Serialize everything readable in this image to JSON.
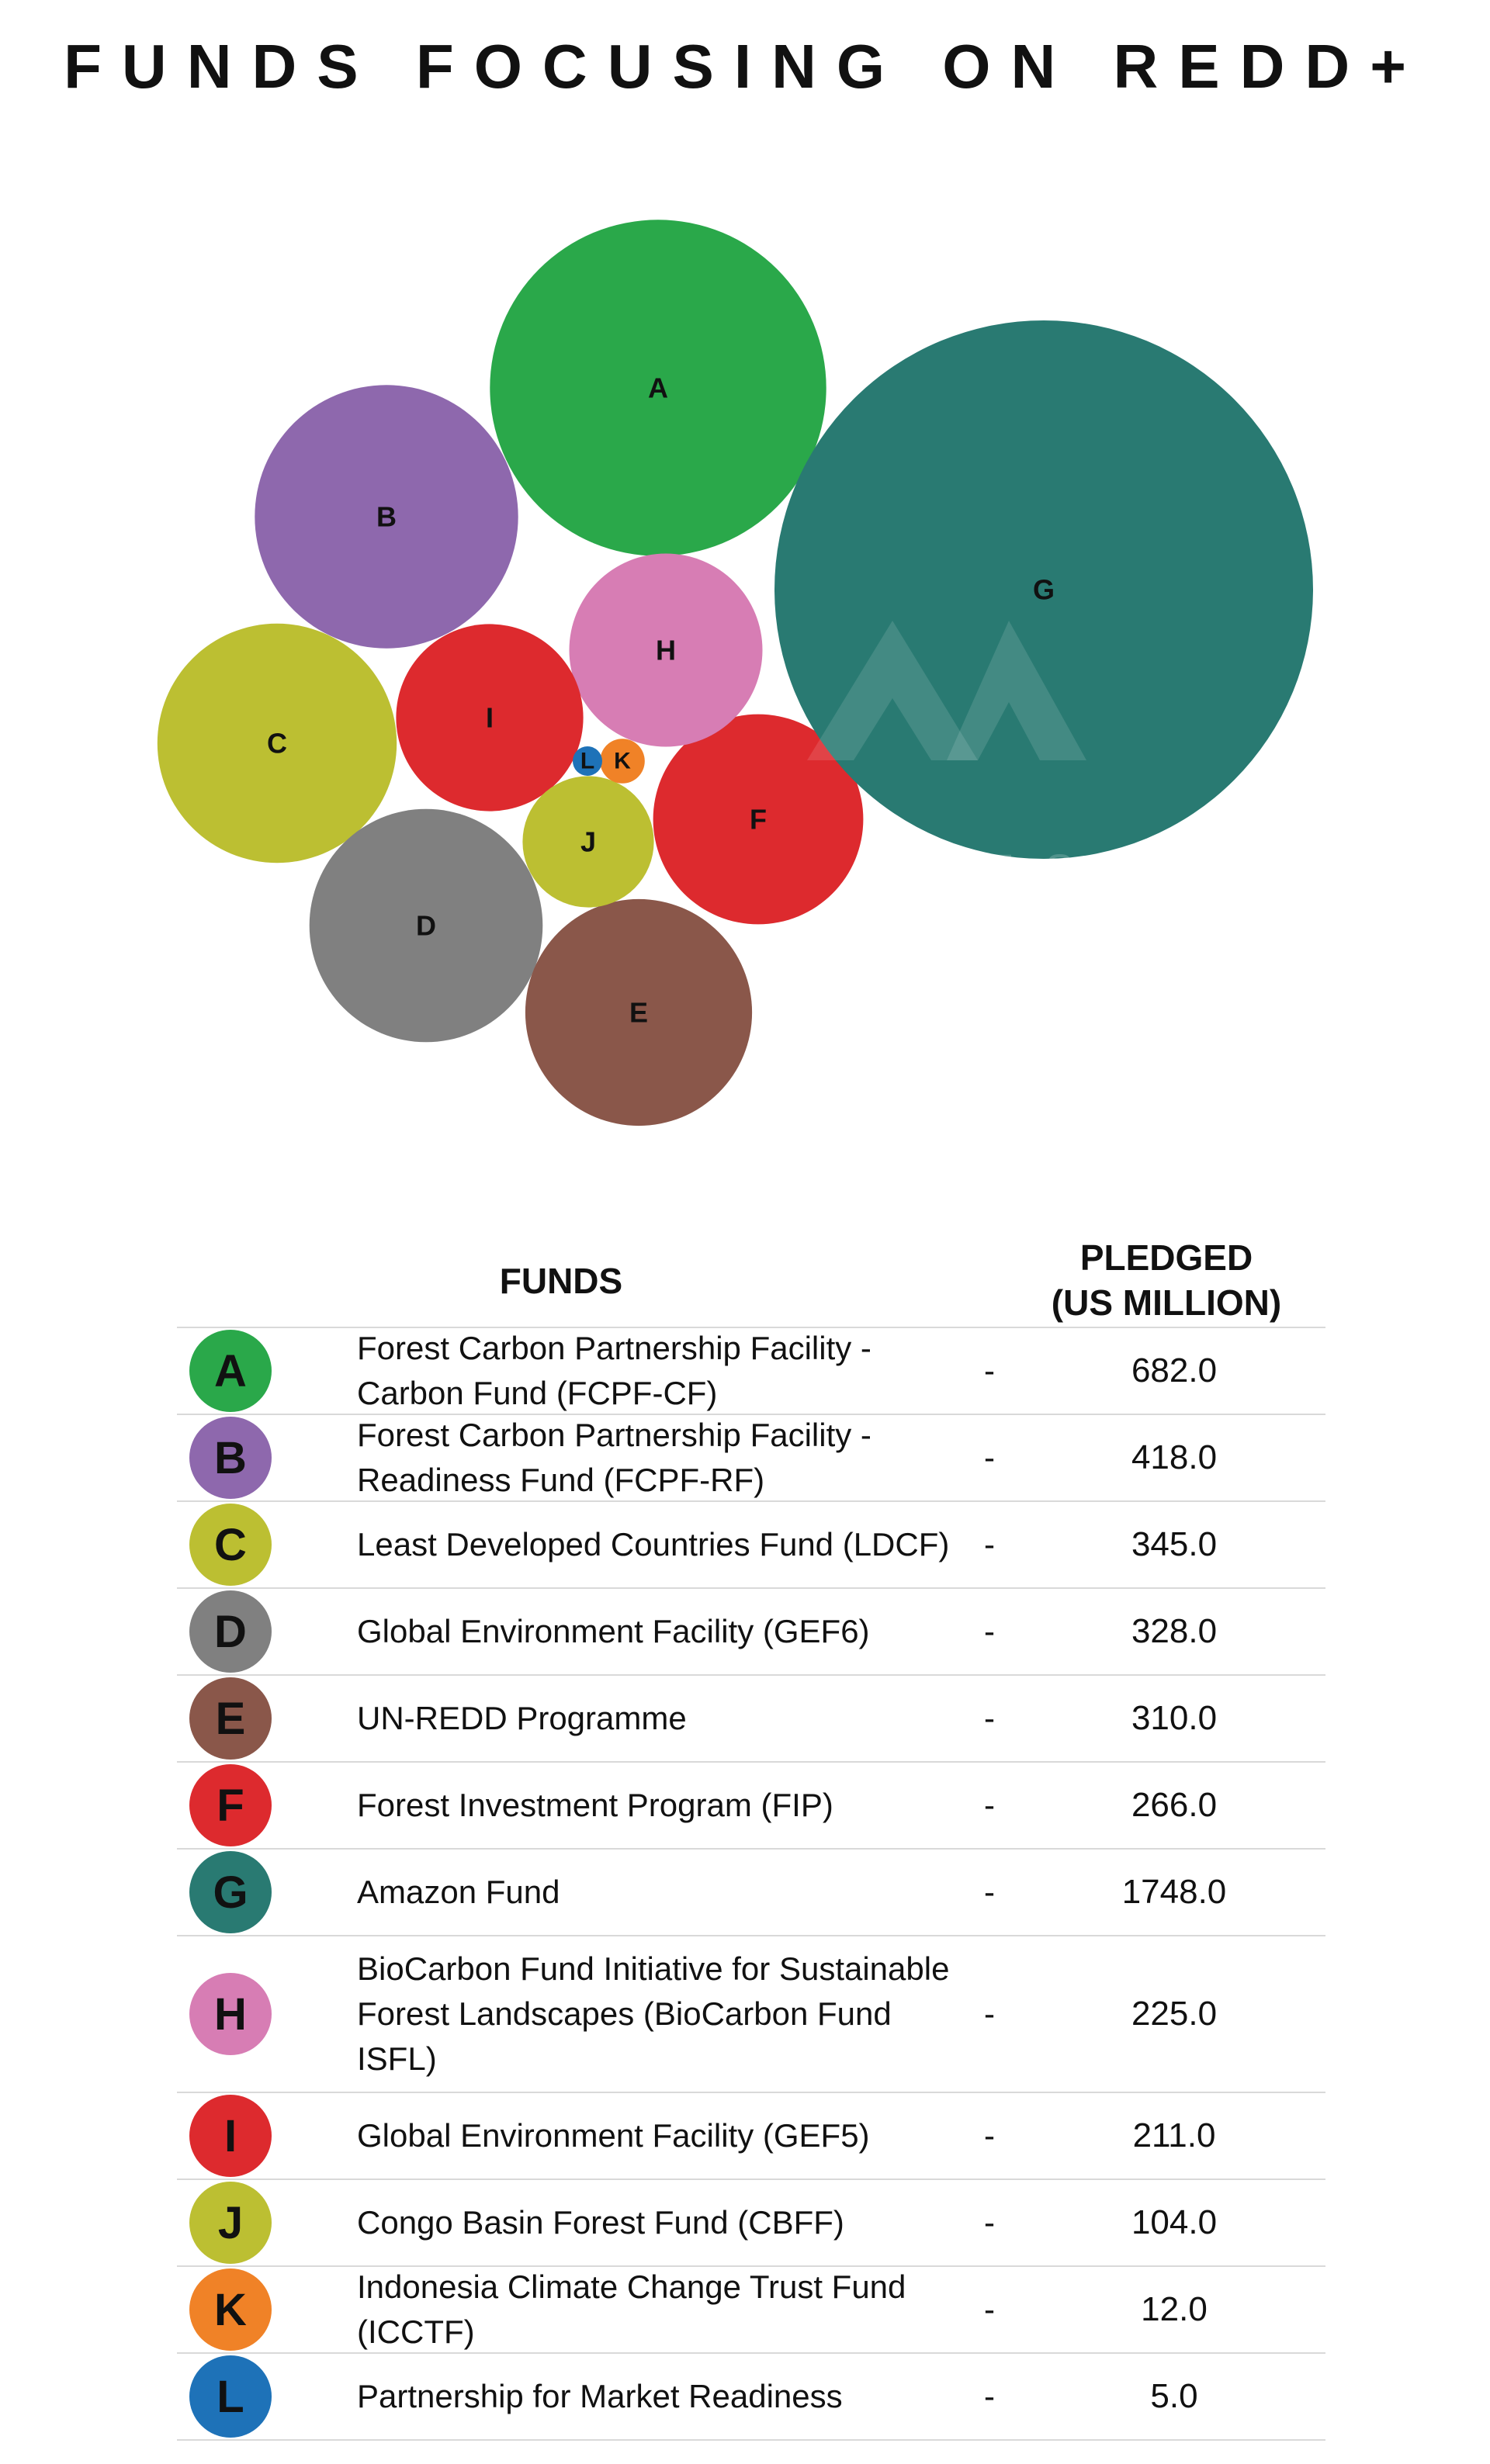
{
  "title": "FUNDS FOCUSING ON REDD+",
  "table": {
    "header_funds": "FUNDS",
    "header_pledged_line1": "PLEDGED",
    "header_pledged_line2": "(US MILLION)",
    "separator": "-"
  },
  "chart_data": {
    "type": "bubble",
    "title": "FUNDS FOCUSING ON REDD+",
    "value_label": "PLEDGED (US MILLION)",
    "series": [
      {
        "id": "A",
        "name": "Forest Carbon Partnership Facility - Carbon Fund (FCPF-CF)",
        "value": 682.0,
        "value_text": "682.0",
        "color": "#2aa84a"
      },
      {
        "id": "B",
        "name": "Forest Carbon Partnership Facility - Readiness Fund (FCPF-RF)",
        "value": 418.0,
        "value_text": "418.0",
        "color": "#8e68ad"
      },
      {
        "id": "C",
        "name": "Least Developed Countries Fund (LDCF)",
        "value": 345.0,
        "value_text": "345.0",
        "color": "#bcbf32"
      },
      {
        "id": "D",
        "name": "Global Environment Facility (GEF6)",
        "value": 328.0,
        "value_text": "328.0",
        "color": "#808080"
      },
      {
        "id": "E",
        "name": "UN-REDD Programme",
        "value": 310.0,
        "value_text": "310.0",
        "color": "#8a574a"
      },
      {
        "id": "F",
        "name": "Forest Investment Program (FIP)",
        "value": 266.0,
        "value_text": "266.0",
        "color": "#dd2a2e"
      },
      {
        "id": "G",
        "name": "Amazon Fund",
        "value": 1748.0,
        "value_text": "1748.0",
        "color": "#297a72"
      },
      {
        "id": "H",
        "name": "BioCarbon Fund Initiative for Sustainable Forest Landscapes (BioCarbon Fund ISFL)",
        "value": 225.0,
        "value_text": "225.0",
        "color": "#d77db4"
      },
      {
        "id": "I",
        "name": "Global Environment Facility (GEF5)",
        "value": 211.0,
        "value_text": "211.0",
        "color": "#dd2a2e"
      },
      {
        "id": "J",
        "name": "Congo Basin Forest Fund (CBFF)",
        "value": 104.0,
        "value_text": "104.0",
        "color": "#bcbf32"
      },
      {
        "id": "K",
        "name": "Indonesia Climate Change Trust Fund (ICCTF)",
        "value": 12.0,
        "value_text": "12.0",
        "color": "#f08227"
      },
      {
        "id": "L",
        "name": "Partnership for Market Readiness",
        "value": 5.0,
        "value_text": "5.0",
        "color": "#1e72b8"
      }
    ]
  }
}
